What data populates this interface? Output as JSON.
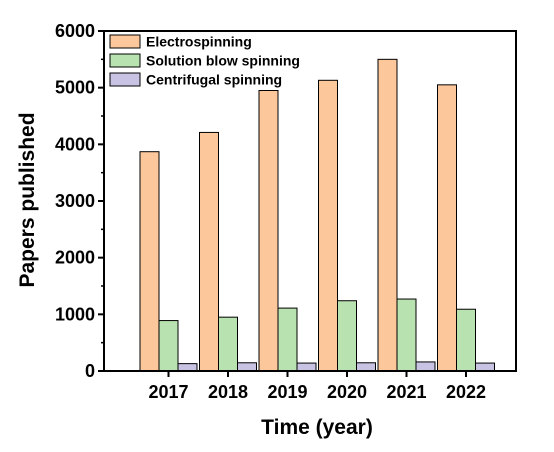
{
  "chart_data": {
    "type": "bar",
    "categories": [
      "2017",
      "2018",
      "2019",
      "2020",
      "2021",
      "2022"
    ],
    "series": [
      {
        "name": "Electrospinning",
        "color": "#fcc79b",
        "values": [
          3870,
          4210,
          4950,
          5130,
          5500,
          5050
        ]
      },
      {
        "name": "Solution blow spinning",
        "color": "#b8e2b0",
        "values": [
          890,
          950,
          1110,
          1240,
          1270,
          1090
        ]
      },
      {
        "name": "Centrifugal spinning",
        "color": "#c8c3e3",
        "values": [
          130,
          145,
          140,
          145,
          160,
          140
        ]
      }
    ],
    "xlabel": "Time (year)",
    "ylabel": "Papers published",
    "ylim": [
      0,
      6000
    ],
    "yticks": [
      "0",
      "1000",
      "2000",
      "3000",
      "4000",
      "5000",
      "6000"
    ],
    "legend_position": "top-left",
    "grid": false
  }
}
